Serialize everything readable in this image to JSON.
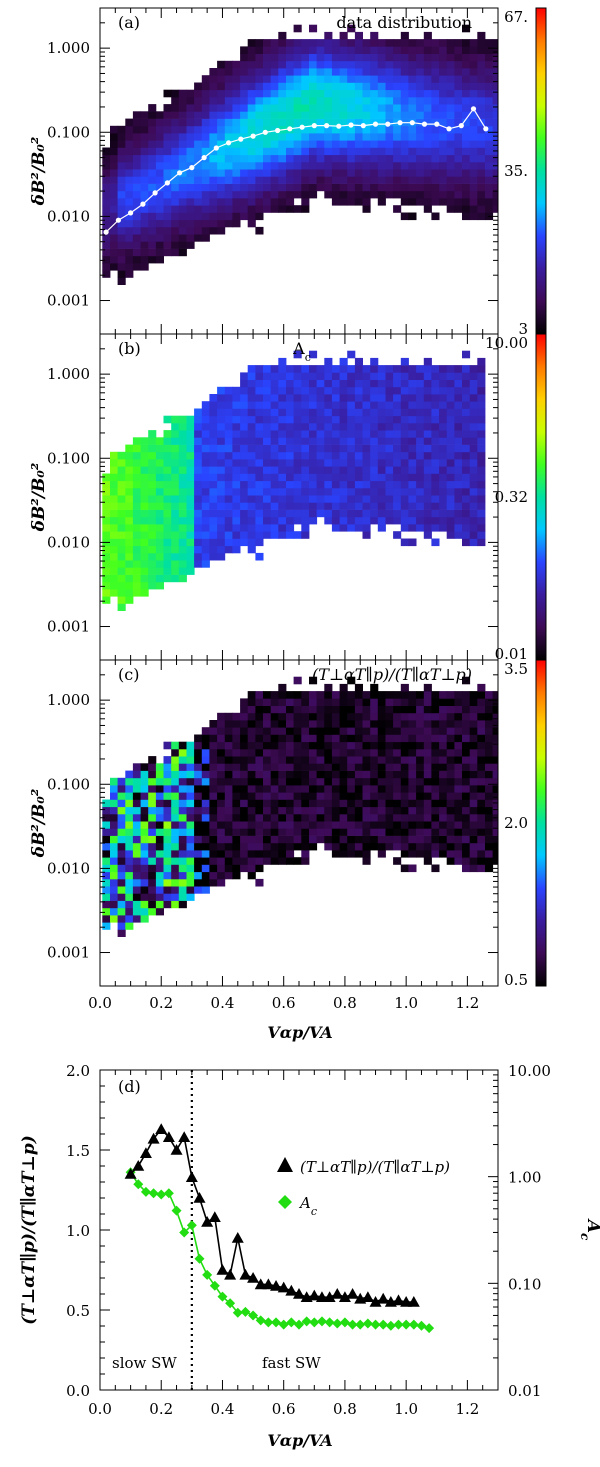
{
  "chart_data": [
    {
      "type": "heatmap",
      "panel": "a",
      "panel_label": "(a)",
      "title": "data distribution",
      "xlabel": "",
      "ylabel": "δB²/B₀²",
      "y_scale": "log",
      "xlim": [
        0.0,
        1.3
      ],
      "ylim": [
        0.0004,
        3.0
      ],
      "ytick_labels": [
        "0.001",
        "0.010",
        "0.100",
        "1.000"
      ],
      "ytick_values": [
        0.001,
        0.01,
        0.1,
        1.0
      ],
      "colorbar": {
        "labels": [
          "67.",
          "35.",
          "3"
        ],
        "range": [
          3,
          67
        ],
        "colors": [
          "#000000",
          "#3d0a55",
          "#3a1d9e",
          "#2a44ff",
          "#00c8ff",
          "#00e0a0",
          "#40ff20",
          "#c8ff00",
          "#ffd000",
          "#ff7a00",
          "#ff0000"
        ]
      },
      "overlay": {
        "name": "median",
        "x": [
          0.02,
          0.06,
          0.1,
          0.14,
          0.18,
          0.22,
          0.26,
          0.3,
          0.34,
          0.38,
          0.42,
          0.46,
          0.5,
          0.54,
          0.58,
          0.62,
          0.66,
          0.7,
          0.74,
          0.78,
          0.82,
          0.86,
          0.9,
          0.94,
          0.98,
          1.02,
          1.06,
          1.1,
          1.14,
          1.18,
          1.22,
          1.26
        ],
        "y": [
          0.0065,
          0.009,
          0.011,
          0.014,
          0.019,
          0.025,
          0.033,
          0.038,
          0.05,
          0.065,
          0.075,
          0.083,
          0.09,
          0.1,
          0.105,
          0.11,
          0.115,
          0.12,
          0.12,
          0.118,
          0.122,
          0.12,
          0.125,
          0.125,
          0.13,
          0.13,
          0.125,
          0.125,
          0.11,
          0.12,
          0.19,
          0.11
        ]
      }
    },
    {
      "type": "heatmap",
      "panel": "b",
      "panel_label": "(b)",
      "title": "A_c",
      "xlabel": "",
      "ylabel": "δB²/B₀²",
      "y_scale": "log",
      "xlim": [
        0.0,
        1.3
      ],
      "ylim": [
        0.0004,
        3.0
      ],
      "ytick_labels": [
        "0.001",
        "0.010",
        "0.100",
        "1.000"
      ],
      "ytick_values": [
        0.001,
        0.01,
        0.1,
        1.0
      ],
      "colorbar": {
        "labels": [
          "10.00",
          "0.32",
          "0.01"
        ],
        "range": [
          0.01,
          10.0
        ],
        "scale": "log",
        "colors": [
          "#000000",
          "#3d0a55",
          "#3a1d9e",
          "#2a44ff",
          "#00c8ff",
          "#00e0a0",
          "#40ff20",
          "#c8ff00",
          "#ffd000",
          "#ff7a00",
          "#ff0000"
        ]
      }
    },
    {
      "type": "heatmap",
      "panel": "c",
      "panel_label": "(c)",
      "title": "(T⊥αT∥p)/(T∥αT⊥p)",
      "xlabel": "Vαp/VA",
      "ylabel": "δB²/B₀²",
      "y_scale": "log",
      "xlim": [
        0.0,
        1.3
      ],
      "ylim": [
        0.0004,
        3.0
      ],
      "xtick_labels": [
        "0.0",
        "0.2",
        "0.4",
        "0.6",
        "0.8",
        "1.0",
        "1.2"
      ],
      "xtick_values": [
        0.0,
        0.2,
        0.4,
        0.6,
        0.8,
        1.0,
        1.2
      ],
      "ytick_labels": [
        "0.001",
        "0.010",
        "0.100",
        "1.000"
      ],
      "ytick_values": [
        0.001,
        0.01,
        0.1,
        1.0
      ],
      "colorbar": {
        "labels": [
          "3.5",
          "2.0",
          "0.5"
        ],
        "range": [
          0.5,
          3.5
        ],
        "colors": [
          "#000000",
          "#3d0a55",
          "#3a1d9e",
          "#2a44ff",
          "#00c8ff",
          "#00e0a0",
          "#40ff20",
          "#c8ff00",
          "#ffd000",
          "#ff7a00",
          "#ff0000"
        ]
      }
    },
    {
      "type": "line",
      "panel": "d",
      "panel_label": "(d)",
      "xlabel": "Vαp/VA",
      "ylabel": "(T⊥αT∥p)/(T∥αT⊥p)",
      "y2label": "A_c",
      "xlim": [
        0.0,
        1.3
      ],
      "ylim": [
        0.0,
        2.0
      ],
      "y2lim": [
        0.01,
        10.0
      ],
      "y2_scale": "log",
      "xtick_labels": [
        "0.0",
        "0.2",
        "0.4",
        "0.6",
        "0.8",
        "1.0",
        "1.2"
      ],
      "xtick_values": [
        0.0,
        0.2,
        0.4,
        0.6,
        0.8,
        1.0,
        1.2
      ],
      "ytick_labels": [
        "0.0",
        "0.5",
        "1.0",
        "1.5",
        "2.0"
      ],
      "ytick_values": [
        0.0,
        0.5,
        1.0,
        1.5,
        2.0
      ],
      "y2tick_labels": [
        "0.01",
        "0.10",
        "1.00",
        "10.00"
      ],
      "y2tick_values": [
        0.01,
        0.1,
        1.0,
        10.0
      ],
      "vline_x": 0.3,
      "annotations": [
        "slow SW",
        "fast SW"
      ],
      "legend_position": "right",
      "series": [
        {
          "name": "(T⊥αT∥p)/(T∥αT⊥p)",
          "axis": "left",
          "marker": "triangle",
          "color": "#000000",
          "x": [
            0.1,
            0.125,
            0.15,
            0.175,
            0.2,
            0.225,
            0.25,
            0.275,
            0.3,
            0.325,
            0.35,
            0.375,
            0.4,
            0.425,
            0.45,
            0.475,
            0.5,
            0.525,
            0.55,
            0.575,
            0.6,
            0.625,
            0.65,
            0.675,
            0.7,
            0.725,
            0.75,
            0.775,
            0.8,
            0.825,
            0.85,
            0.875,
            0.9,
            0.925,
            0.95,
            0.975,
            1.0,
            1.025
          ],
          "y": [
            1.35,
            1.4,
            1.48,
            1.57,
            1.63,
            1.58,
            1.5,
            1.58,
            1.33,
            1.2,
            1.05,
            1.08,
            0.75,
            0.72,
            0.95,
            0.72,
            0.7,
            0.66,
            0.66,
            0.65,
            0.64,
            0.62,
            0.6,
            0.58,
            0.59,
            0.58,
            0.58,
            0.6,
            0.58,
            0.6,
            0.57,
            0.58,
            0.55,
            0.57,
            0.55,
            0.56,
            0.55,
            0.55
          ]
        },
        {
          "name": "A_c",
          "axis": "right",
          "marker": "diamond",
          "color": "#22dd11",
          "x": [
            0.1,
            0.125,
            0.15,
            0.175,
            0.2,
            0.225,
            0.25,
            0.275,
            0.3,
            0.325,
            0.35,
            0.375,
            0.4,
            0.425,
            0.45,
            0.475,
            0.5,
            0.525,
            0.55,
            0.575,
            0.6,
            0.625,
            0.65,
            0.675,
            0.7,
            0.725,
            0.75,
            0.775,
            0.8,
            0.825,
            0.85,
            0.875,
            0.9,
            0.925,
            0.95,
            0.975,
            1.0,
            1.025,
            1.05,
            1.075
          ],
          "y": [
            1.1,
            0.85,
            0.72,
            0.7,
            0.68,
            0.7,
            0.48,
            0.3,
            0.35,
            0.17,
            0.12,
            0.095,
            0.075,
            0.065,
            0.053,
            0.054,
            0.05,
            0.045,
            0.043,
            0.043,
            0.041,
            0.043,
            0.041,
            0.044,
            0.043,
            0.044,
            0.043,
            0.042,
            0.043,
            0.041,
            0.041,
            0.042,
            0.041,
            0.041,
            0.04,
            0.041,
            0.041,
            0.041,
            0.04,
            0.038
          ]
        }
      ]
    }
  ]
}
